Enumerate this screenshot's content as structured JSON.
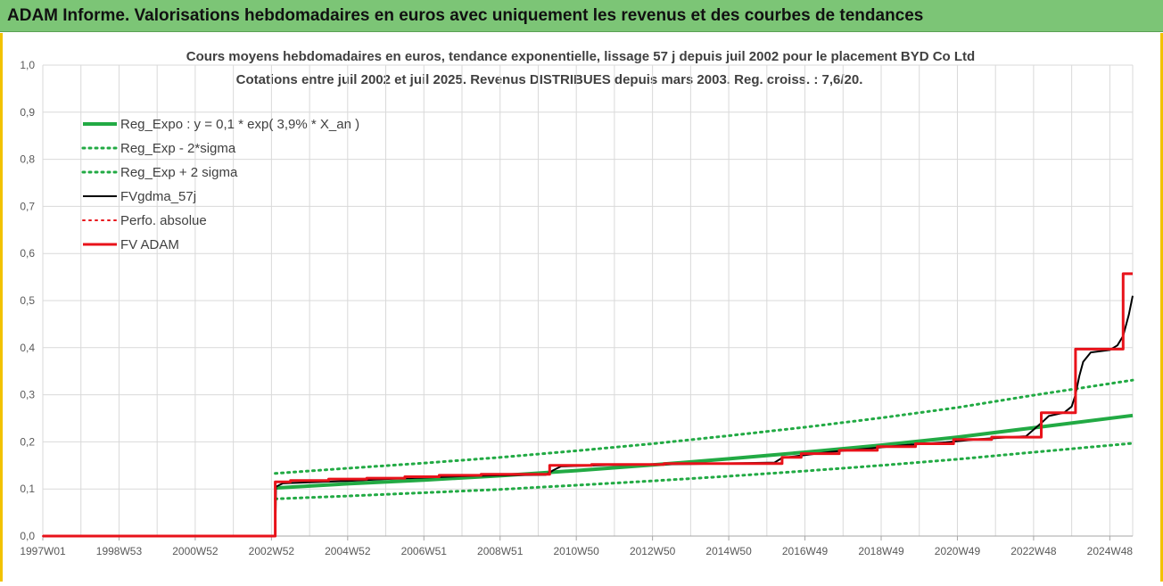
{
  "banner": {
    "title": "ADAM Informe. Valorisations hebdomadaires en euros avec uniquement les revenus et des courbes de tendances"
  },
  "colors": {
    "banner_bg": "#7cc576",
    "frame_border": "#f2c200",
    "reg_green": "#22aa44",
    "fv_black": "#000000",
    "fv_red": "#e8121a",
    "grid": "#d9d9d9"
  },
  "chart_data": {
    "type": "line",
    "title_line1": "Cours moyens hebdomadaires en euros, tendance exponentielle, lissage 57 j depuis juil 2002 pour le placement BYD Co Ltd",
    "title_line2": "Cotations entre juil 2002 et juil 2025. Revenus DISTRIBUES depuis mars 2003. Reg. croiss. : 7,6/20.",
    "ylim": [
      0,
      1
    ],
    "xlim": [
      1997.0,
      2025.6
    ],
    "grid": true,
    "legend_position": "top-left",
    "y_ticks": [
      "0,0",
      "0,1",
      "0,2",
      "0,3",
      "0,4",
      "0,5",
      "0,6",
      "0,7",
      "0,8",
      "0,9",
      "1,0"
    ],
    "x_ticks": [
      {
        "label": "1997W01",
        "x": 1997.0
      },
      {
        "label": "1998W53",
        "x": 1999.0
      },
      {
        "label": "2000W52",
        "x": 2001.0
      },
      {
        "label": "2002W52",
        "x": 2003.0
      },
      {
        "label": "2004W52",
        "x": 2005.0
      },
      {
        "label": "2006W51",
        "x": 2007.0
      },
      {
        "label": "2008W51",
        "x": 2009.0
      },
      {
        "label": "2010W50",
        "x": 2011.0
      },
      {
        "label": "2012W50",
        "x": 2013.0
      },
      {
        "label": "2014W50",
        "x": 2015.0
      },
      {
        "label": "2016W49",
        "x": 2017.0
      },
      {
        "label": "2018W49",
        "x": 2019.0
      },
      {
        "label": "2020W49",
        "x": 2021.0
      },
      {
        "label": "2022W48",
        "x": 2023.0
      },
      {
        "label": "2024W48",
        "x": 2025.0
      }
    ],
    "legend": [
      {
        "label": "Reg_Expo : y = 0,1  * exp( 3,9% *  X_an )",
        "color": "#22aa44",
        "style": "solid",
        "width": 4
      },
      {
        "label": "Reg_Exp - 2*sigma",
        "color": "#22aa44",
        "style": "dotted",
        "width": 3
      },
      {
        "label": "Reg_Exp + 2 sigma",
        "color": "#22aa44",
        "style": "dotted",
        "width": 3
      },
      {
        "label": "FVgdma_57j",
        "color": "#000000",
        "style": "solid",
        "width": 2
      },
      {
        "label": "Perfo. absolue",
        "color": "#e8121a",
        "style": "dotted",
        "width": 2
      },
      {
        "label": "FV ADAM",
        "color": "#e8121a",
        "style": "solid",
        "width": 3
      }
    ],
    "series": [
      {
        "name": "Reg_Expo : y = 0,1  * exp( 3,9% *  X_an )",
        "color": "#22aa44",
        "style": "solid",
        "width": 4,
        "x": [
          2003.1,
          2005,
          2007,
          2009,
          2011,
          2013,
          2015,
          2017,
          2019,
          2021,
          2023,
          2025.6
        ],
        "y": [
          0.102,
          0.111,
          0.119,
          0.128,
          0.139,
          0.151,
          0.164,
          0.178,
          0.193,
          0.21,
          0.23,
          0.256
        ]
      },
      {
        "name": "Reg_Exp - 2*sigma",
        "color": "#22aa44",
        "style": "dotted",
        "width": 3,
        "x": [
          2003.1,
          2005,
          2007,
          2009,
          2011,
          2013,
          2015,
          2017,
          2019,
          2021,
          2023,
          2025.6
        ],
        "y": [
          0.079,
          0.085,
          0.092,
          0.099,
          0.108,
          0.117,
          0.127,
          0.138,
          0.15,
          0.163,
          0.178,
          0.197
        ]
      },
      {
        "name": "Reg_Exp + 2 sigma",
        "color": "#22aa44",
        "style": "dotted",
        "width": 3,
        "x": [
          2003.1,
          2005,
          2007,
          2009,
          2011,
          2013,
          2015,
          2017,
          2019,
          2021,
          2023,
          2025.6
        ],
        "y": [
          0.133,
          0.144,
          0.155,
          0.167,
          0.181,
          0.196,
          0.213,
          0.231,
          0.251,
          0.273,
          0.299,
          0.331
        ]
      },
      {
        "name": "FVgdma_57j",
        "color": "#000000",
        "style": "solid",
        "width": 2,
        "x": [
          1997.0,
          2003.1,
          2003.12,
          2003.3,
          2004.0,
          2005.0,
          2006.0,
          2007.0,
          2008.0,
          2009.0,
          2010.2,
          2010.4,
          2010.6,
          2012.0,
          2014.0,
          2016.2,
          2016.4,
          2016.8,
          2017.0,
          2017.7,
          2018.7,
          2019.6,
          2020.7,
          2021.6,
          2022.8,
          2023.2,
          2023.4,
          2023.8,
          2024.0,
          2024.1,
          2024.2,
          2024.3,
          2024.5,
          2025.0,
          2025.2,
          2025.35,
          2025.5,
          2025.6
        ],
        "y": [
          0,
          0,
          0.105,
          0.112,
          0.114,
          0.117,
          0.121,
          0.124,
          0.127,
          0.129,
          0.13,
          0.14,
          0.148,
          0.151,
          0.153,
          0.156,
          0.166,
          0.17,
          0.172,
          0.179,
          0.186,
          0.193,
          0.199,
          0.206,
          0.212,
          0.24,
          0.255,
          0.262,
          0.275,
          0.3,
          0.34,
          0.37,
          0.39,
          0.395,
          0.405,
          0.425,
          0.47,
          0.51
        ]
      },
      {
        "name": "Perfo. absolue",
        "color": "#e8121a",
        "style": "dotted",
        "width": 2,
        "x": [
          1997.0,
          2003.1,
          2003.11
        ],
        "y": [
          0,
          0,
          0.115
        ]
      },
      {
        "name": "FV ADAM",
        "color": "#e8121a",
        "style": "step",
        "width": 3,
        "x": [
          1997.0,
          2003.1,
          2003.1,
          2003.5,
          2003.5,
          2004.5,
          2004.5,
          2005.5,
          2005.5,
          2006.5,
          2006.5,
          2007.4,
          2007.4,
          2008.5,
          2008.5,
          2010.3,
          2010.3,
          2011.4,
          2011.4,
          2013.3,
          2013.3,
          2016.4,
          2016.4,
          2016.9,
          2016.9,
          2017.9,
          2017.9,
          2018.9,
          2018.9,
          2019.9,
          2019.9,
          2020.9,
          2020.9,
          2021.9,
          2021.9,
          2023.2,
          2023.2,
          2024.1,
          2024.1,
          2025.35,
          2025.35,
          2025.6
        ],
        "y": [
          0,
          0,
          0.115,
          0.115,
          0.118,
          0.118,
          0.121,
          0.121,
          0.123,
          0.123,
          0.126,
          0.126,
          0.129,
          0.129,
          0.131,
          0.131,
          0.15,
          0.15,
          0.152,
          0.152,
          0.154,
          0.154,
          0.167,
          0.167,
          0.175,
          0.175,
          0.182,
          0.182,
          0.19,
          0.19,
          0.196,
          0.196,
          0.205,
          0.205,
          0.21,
          0.21,
          0.262,
          0.262,
          0.397,
          0.397,
          0.557,
          0.557
        ]
      }
    ]
  }
}
